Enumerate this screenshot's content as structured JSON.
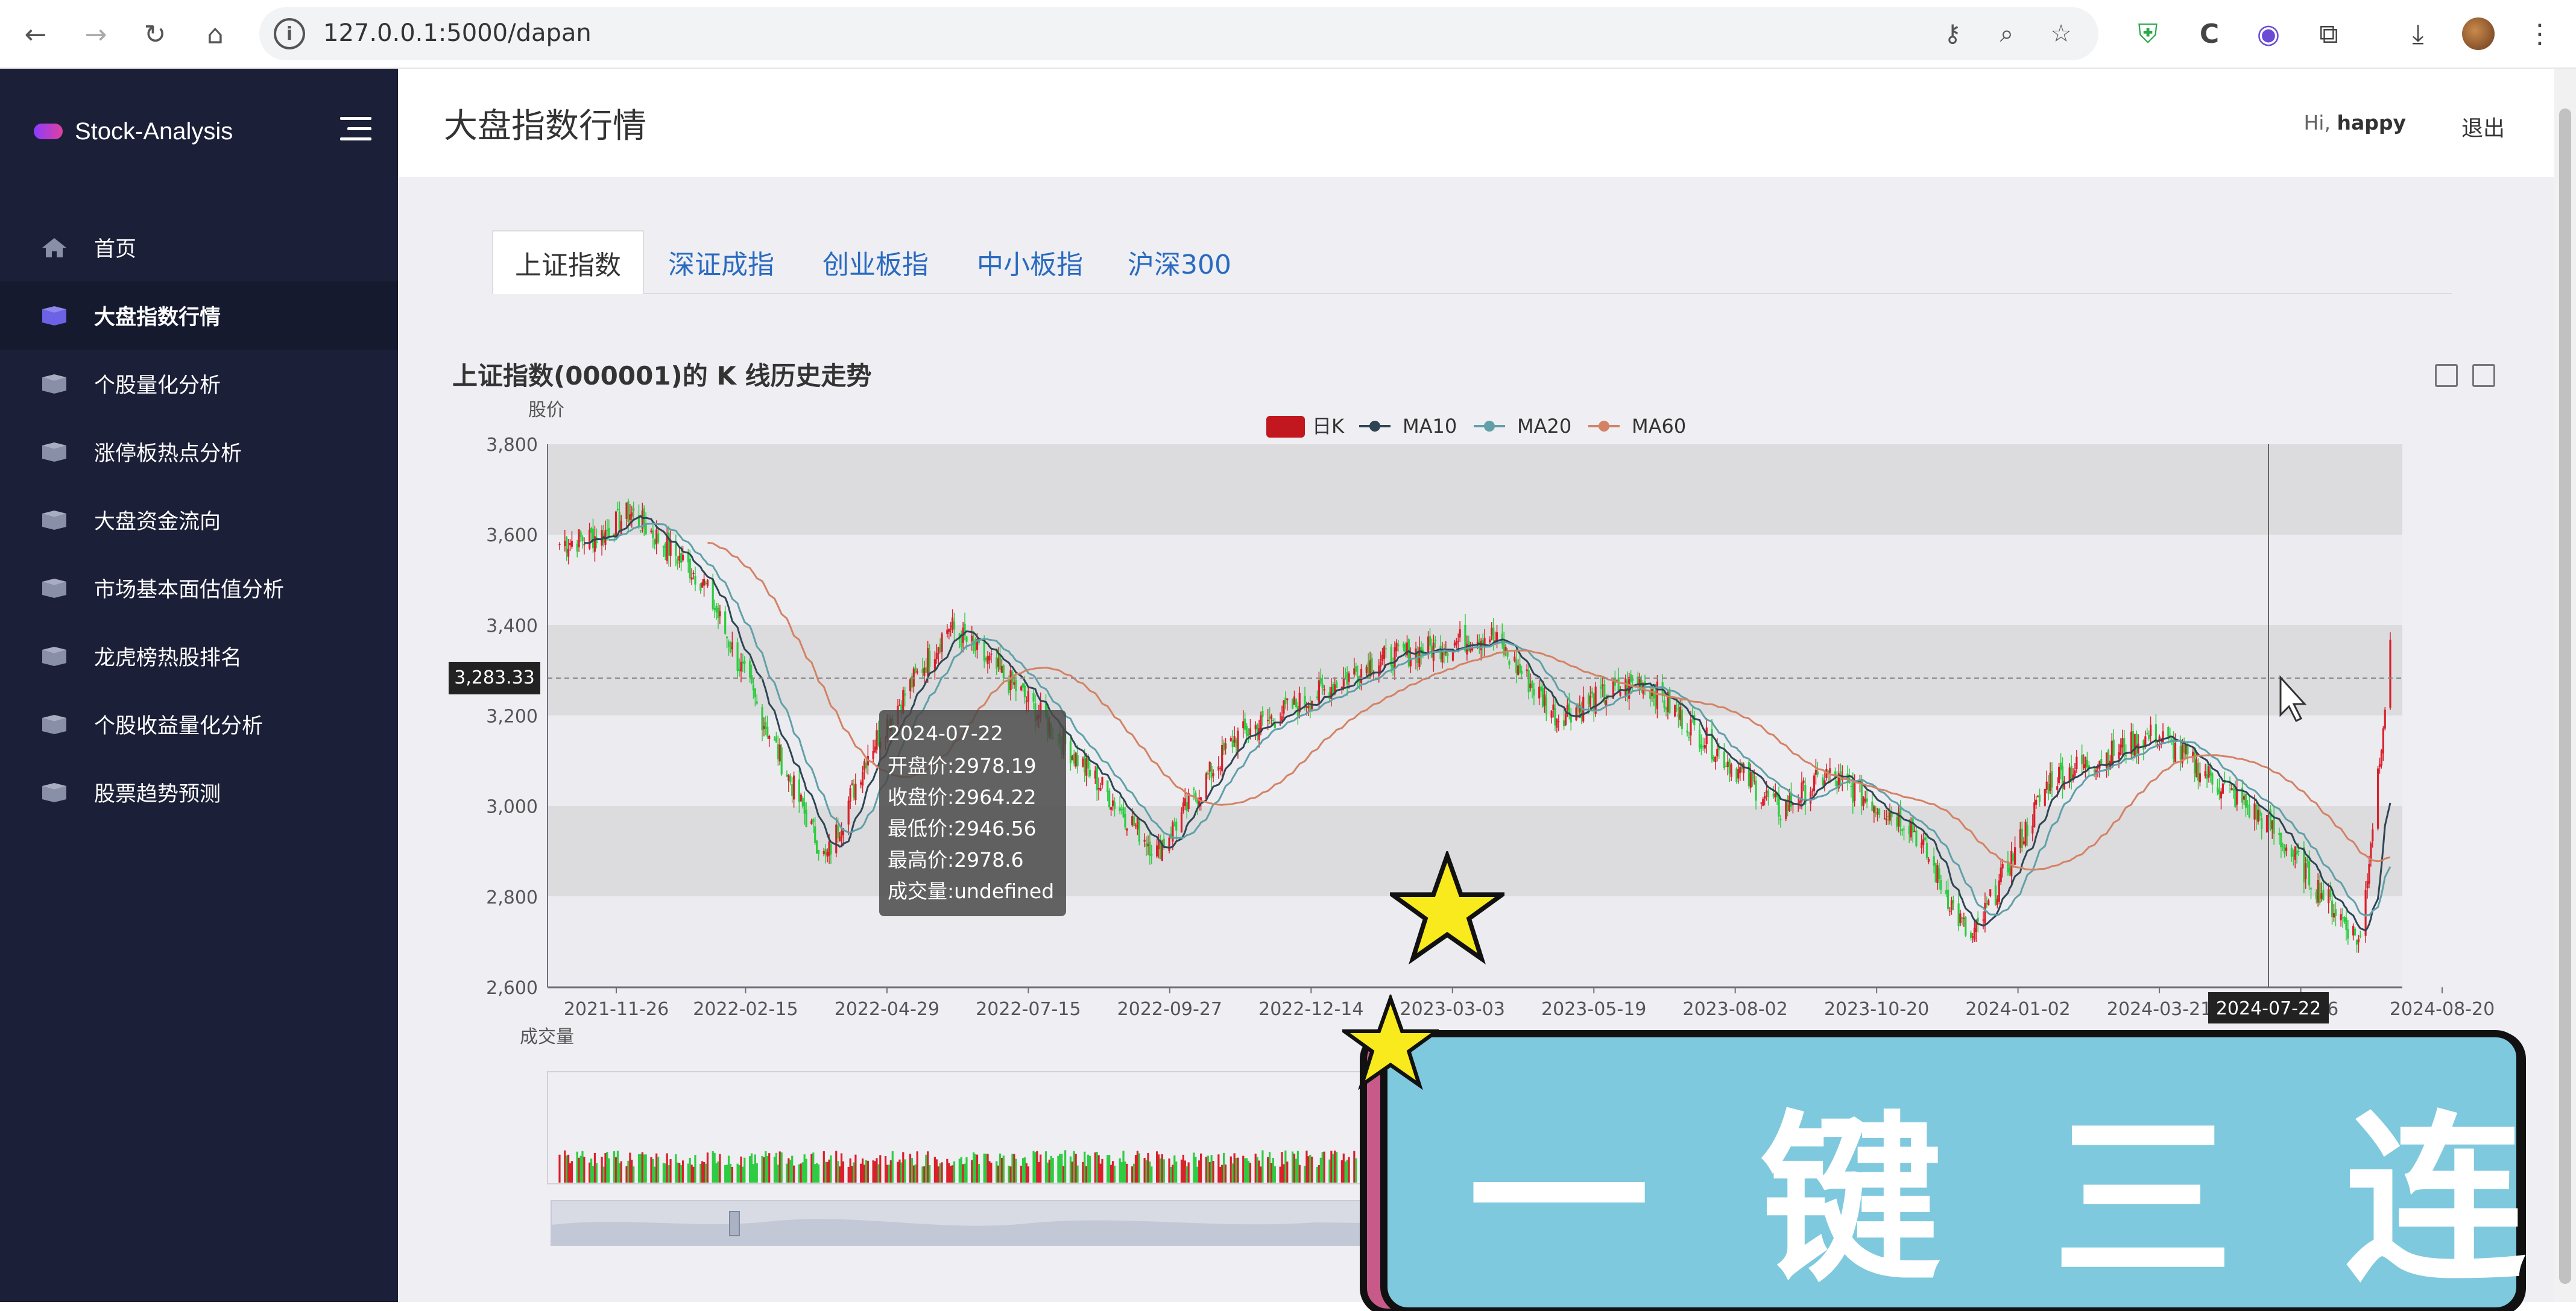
{
  "browser": {
    "url": "127.0.0.1:5000/dapan"
  },
  "sidebar": {
    "brand": "Stock-Analysis",
    "items": [
      {
        "label": "首页",
        "icon": "home-icon"
      },
      {
        "label": "大盘指数行情",
        "icon": "box-icon",
        "active": true
      },
      {
        "label": "个股量化分析",
        "icon": "box-icon"
      },
      {
        "label": "涨停板热点分析",
        "icon": "box-icon"
      },
      {
        "label": "大盘资金流向",
        "icon": "box-icon"
      },
      {
        "label": "市场基本面估值分析",
        "icon": "box-icon"
      },
      {
        "label": "龙虎榜热股排名",
        "icon": "box-icon"
      },
      {
        "label": "个股收益量化分析",
        "icon": "box-icon"
      },
      {
        "label": "股票趋势预测",
        "icon": "box-icon"
      }
    ]
  },
  "header": {
    "title": "大盘指数行情",
    "greeting": "Hi,",
    "user": "happy",
    "logout": "退出"
  },
  "tabs": [
    "上证指数",
    "深证成指",
    "创业板指",
    "中小板指",
    "沪深300"
  ],
  "colors": {
    "sidebar_bg": "#1b1f37",
    "tab_link": "#2a6bbf",
    "candle_up": "#d9202b",
    "candle_down": "#2ecc40",
    "ma10": "#2f4554",
    "ma20": "#61a0a8",
    "ma60": "#d48265"
  },
  "chart_data": {
    "type": "candlestick",
    "title": "上证指数(000001)的 K 线历史走势",
    "ylabel": "股价",
    "ylim": [
      2600,
      3800
    ],
    "yticks": [
      "3,800",
      "3,600",
      "3,400",
      "3,200",
      "3,000",
      "2,800",
      "2,600"
    ],
    "xticks": [
      "2021-11-26",
      "2022-02-15",
      "2022-04-29",
      "2022-07-15",
      "2022-09-27",
      "2022-12-14",
      "2023-03-03",
      "2023-05-19",
      "2023-08-02",
      "2023-10-20",
      "2024-01-02",
      "2024-03-21",
      "2024-06",
      "2024-08-20"
    ],
    "legend": [
      "日K",
      "MA10",
      "MA20",
      "MA60"
    ],
    "legend_position": "top-center",
    "crosshair_value": "3,283.33",
    "crosshair_date": "2024-07-22",
    "close_trend": [
      {
        "x": "2021-11-26",
        "y": 3580
      },
      {
        "x": "2021-12-20",
        "y": 3600
      },
      {
        "x": "2022-01-05",
        "y": 3650
      },
      {
        "x": "2022-02-15",
        "y": 3500
      },
      {
        "x": "2022-03-15",
        "y": 3250
      },
      {
        "x": "2022-04-26",
        "y": 2880
      },
      {
        "x": "2022-05-20",
        "y": 3120
      },
      {
        "x": "2022-07-05",
        "y": 3400
      },
      {
        "x": "2022-08-15",
        "y": 3250
      },
      {
        "x": "2022-10-31",
        "y": 2900
      },
      {
        "x": "2022-12-14",
        "y": 3150
      },
      {
        "x": "2023-01-31",
        "y": 3250
      },
      {
        "x": "2023-03-03",
        "y": 3320
      },
      {
        "x": "2023-05-08",
        "y": 3380
      },
      {
        "x": "2023-06-15",
        "y": 3200
      },
      {
        "x": "2023-08-02",
        "y": 3280
      },
      {
        "x": "2023-10-20",
        "y": 2990
      },
      {
        "x": "2023-11-15",
        "y": 3070
      },
      {
        "x": "2024-01-02",
        "y": 2960
      },
      {
        "x": "2024-02-05",
        "y": 2700
      },
      {
        "x": "2024-03-21",
        "y": 3060
      },
      {
        "x": "2024-05-20",
        "y": 3160
      },
      {
        "x": "2024-07-22",
        "y": 2964.22
      },
      {
        "x": "2024-09-13",
        "y": 2700
      },
      {
        "x": "2024-09-30",
        "y": 3340
      }
    ],
    "tooltip": {
      "date": "2024-07-22",
      "lines": [
        "开盘价:2978.19",
        "收盘价:2964.22",
        "最低价:2946.56",
        "最高价:2978.6",
        "成交量:undefined"
      ]
    },
    "volume_label": "成交量"
  },
  "overlay": {
    "promo_text": "一 键 三 连"
  }
}
